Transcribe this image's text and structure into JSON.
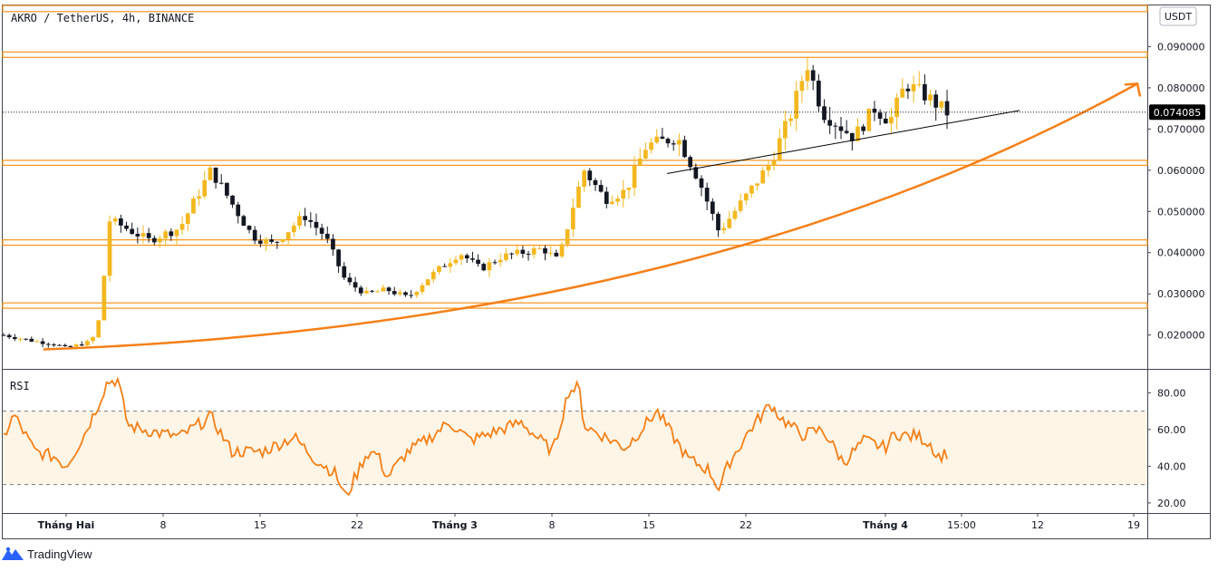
{
  "header": {
    "title": "AKRO / TetherUS, 4h, BINANCE",
    "currency_button": "USDT"
  },
  "footer": {
    "brand": "TradingView",
    "logo_icon": "tradingview-logo-icon"
  },
  "colors": {
    "up": "#f3b81f",
    "down": "#131722",
    "zone": "#f7931a",
    "curve": "#f57f17",
    "rsi_line": "#f57f17",
    "rsi_band": "#fff5e6",
    "trend": "#000000",
    "price_tag": "#000000"
  },
  "chart_data": [
    {
      "type": "candlestick",
      "symbol": "AKRO / TetherUS",
      "interval": "4h",
      "exchange": "BINANCE",
      "ylim": [
        0.012,
        0.1
      ],
      "y_ticks": [
        "0.020000",
        "0.030000",
        "0.040000",
        "0.050000",
        "0.060000",
        "0.070000",
        "0.080000",
        "0.090000"
      ],
      "x_ticks": [
        "Tháng Hai",
        "8",
        "15",
        "22",
        "Tháng 3",
        "8",
        "15",
        "22",
        "Tháng 4",
        "15:00",
        "12",
        "19"
      ],
      "last_price": 0.074085,
      "last_price_label": "0.074085",
      "horizontal_zones": [
        [
          0.0985,
          0.1
        ],
        [
          0.0874,
          0.0887
        ],
        [
          0.0612,
          0.0624
        ],
        [
          0.0418,
          0.0431
        ],
        [
          0.0265,
          0.0278
        ]
      ],
      "trendline": {
        "from": [
          0.64,
          0.0592
        ],
        "to": [
          0.98,
          0.0745
        ]
      },
      "curve_arrow": {
        "from": [
          0.0,
          0.0165
        ],
        "mid": [
          0.55,
          0.0355
        ],
        "to": [
          1.0,
          0.081
        ]
      },
      "path_points": [
        [
          0.0,
          0.02
        ],
        [
          0.03,
          0.0185
        ],
        [
          0.05,
          0.0178
        ],
        [
          0.06,
          0.0168
        ],
        [
          0.085,
          0.0185
        ],
        [
          0.095,
          0.026
        ],
        [
          0.1,
          0.048
        ],
        [
          0.11,
          0.047
        ],
        [
          0.14,
          0.043
        ],
        [
          0.17,
          0.046
        ],
        [
          0.2,
          0.06
        ],
        [
          0.22,
          0.052
        ],
        [
          0.24,
          0.044
        ],
        [
          0.26,
          0.042
        ],
        [
          0.29,
          0.049
        ],
        [
          0.31,
          0.044
        ],
        [
          0.33,
          0.033
        ],
        [
          0.35,
          0.03
        ],
        [
          0.37,
          0.031
        ],
        [
          0.39,
          0.029
        ],
        [
          0.41,
          0.034
        ],
        [
          0.44,
          0.04
        ],
        [
          0.46,
          0.036
        ],
        [
          0.48,
          0.039
        ],
        [
          0.52,
          0.041
        ],
        [
          0.535,
          0.038
        ],
        [
          0.55,
          0.052
        ],
        [
          0.56,
          0.06
        ],
        [
          0.58,
          0.053
        ],
        [
          0.6,
          0.055
        ],
        [
          0.62,
          0.066
        ],
        [
          0.65,
          0.068
        ],
        [
          0.67,
          0.058
        ],
        [
          0.69,
          0.045
        ],
        [
          0.72,
          0.055
        ],
        [
          0.74,
          0.062
        ],
        [
          0.76,
          0.074
        ],
        [
          0.775,
          0.086
        ],
        [
          0.79,
          0.074
        ],
        [
          0.82,
          0.068
        ],
        [
          0.84,
          0.075
        ],
        [
          0.855,
          0.072
        ],
        [
          0.87,
          0.081
        ],
        [
          0.89,
          0.078
        ],
        [
          0.91,
          0.074
        ]
      ]
    },
    {
      "type": "line",
      "name": "RSI",
      "ylim": [
        15,
        92
      ],
      "y_ticks": [
        "20.00",
        "40.00",
        "60.00",
        "80.00"
      ],
      "bands": [
        30,
        70
      ],
      "path_points": [
        [
          0.0,
          56
        ],
        [
          0.01,
          68
        ],
        [
          0.03,
          48
        ],
        [
          0.05,
          45
        ],
        [
          0.06,
          40
        ],
        [
          0.075,
          54
        ],
        [
          0.09,
          72
        ],
        [
          0.1,
          86
        ],
        [
          0.11,
          87
        ],
        [
          0.12,
          62
        ],
        [
          0.15,
          58
        ],
        [
          0.17,
          56
        ],
        [
          0.2,
          67
        ],
        [
          0.22,
          48
        ],
        [
          0.25,
          48
        ],
        [
          0.28,
          56
        ],
        [
          0.3,
          44
        ],
        [
          0.32,
          36
        ],
        [
          0.33,
          23
        ],
        [
          0.35,
          47
        ],
        [
          0.36,
          47
        ],
        [
          0.37,
          34
        ],
        [
          0.39,
          48
        ],
        [
          0.41,
          55
        ],
        [
          0.43,
          64
        ],
        [
          0.45,
          54
        ],
        [
          0.47,
          58
        ],
        [
          0.5,
          64
        ],
        [
          0.51,
          58
        ],
        [
          0.53,
          48
        ],
        [
          0.545,
          81
        ],
        [
          0.555,
          83
        ],
        [
          0.56,
          62
        ],
        [
          0.58,
          56
        ],
        [
          0.6,
          50
        ],
        [
          0.63,
          70
        ],
        [
          0.66,
          44
        ],
        [
          0.68,
          38
        ],
        [
          0.69,
          28
        ],
        [
          0.7,
          42
        ],
        [
          0.72,
          60
        ],
        [
          0.74,
          74
        ],
        [
          0.75,
          66
        ],
        [
          0.77,
          57
        ],
        [
          0.79,
          60
        ],
        [
          0.81,
          42
        ],
        [
          0.83,
          54
        ],
        [
          0.85,
          50
        ],
        [
          0.86,
          58
        ],
        [
          0.875,
          56
        ],
        [
          0.88,
          57
        ],
        [
          0.895,
          52
        ],
        [
          0.9,
          45
        ],
        [
          0.91,
          47
        ]
      ]
    }
  ]
}
